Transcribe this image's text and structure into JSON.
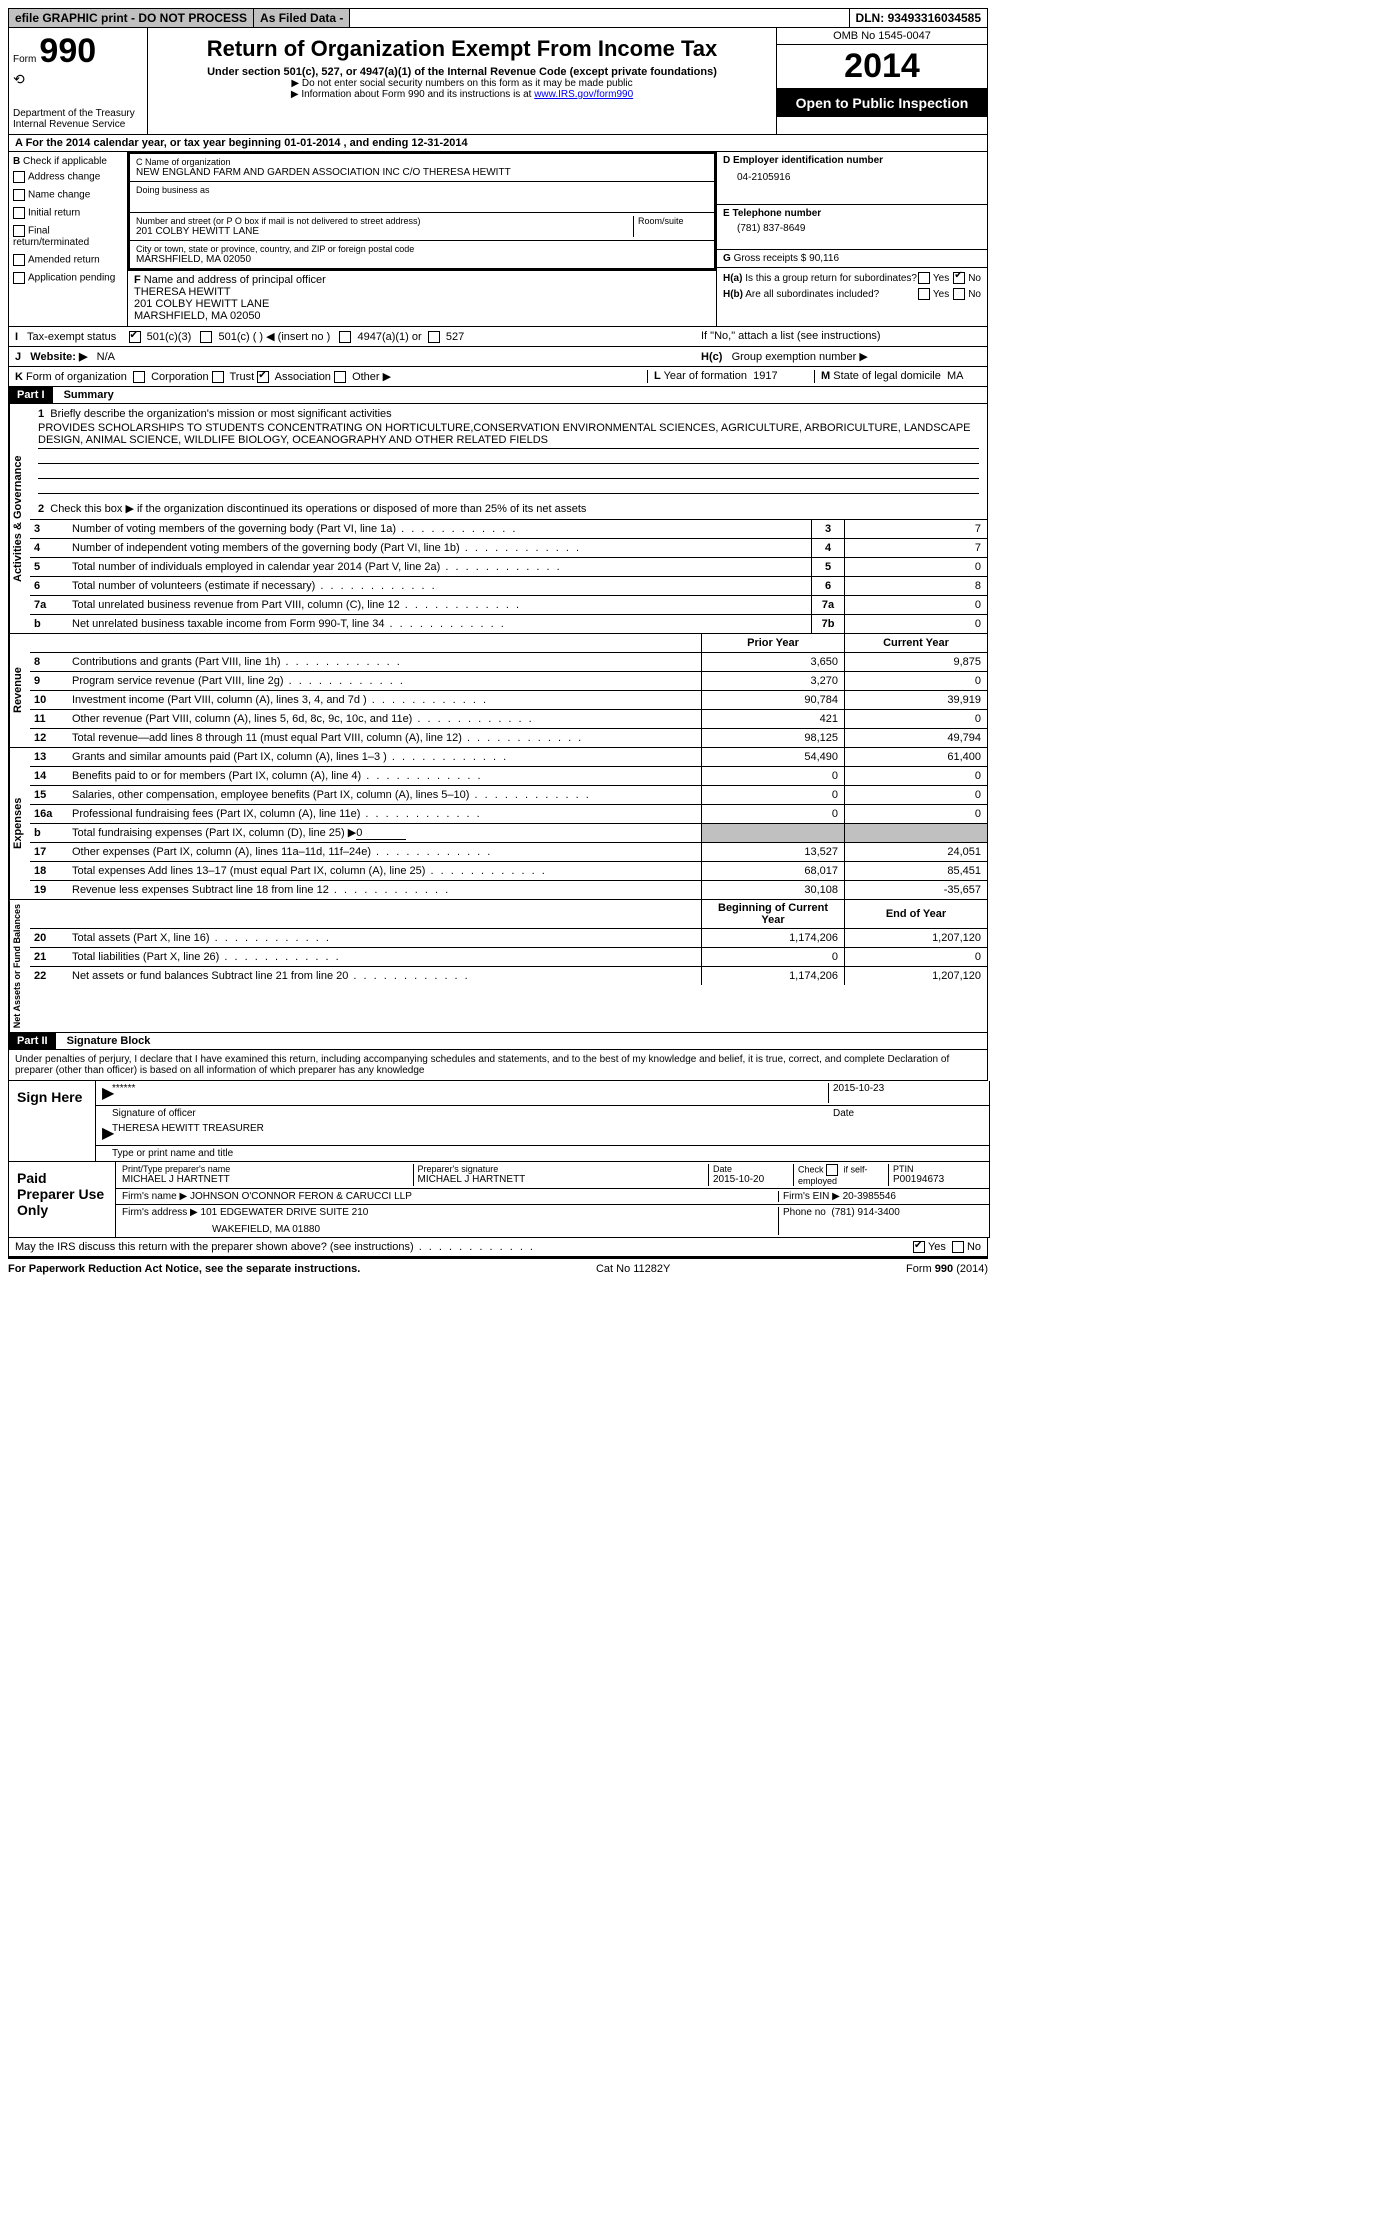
{
  "topbar": {
    "efile": "efile GRAPHIC print - DO NOT PROCESS",
    "asfiled": "As Filed Data -",
    "dln_label": "DLN:",
    "dln": "93493316034585"
  },
  "header": {
    "form_label": "Form",
    "form_num": "990",
    "dept": "Department of the Treasury",
    "irs": "Internal Revenue Service",
    "title": "Return of Organization Exempt From Income Tax",
    "subtitle": "Under section 501(c), 527, or 4947(a)(1) of the Internal Revenue Code (except private foundations)",
    "note1": "▶ Do not enter social security numbers on this form as it may be made public",
    "note2_pre": "▶ Information about Form 990 and its instructions is at ",
    "note2_link": "www.IRS.gov/form990",
    "omb": "OMB No 1545-0047",
    "year": "2014",
    "open": "Open to Public Inspection"
  },
  "sectionA": {
    "line": "A  For the 2014 calendar year, or tax year beginning 01-01-2014    , and ending 12-31-2014",
    "B_label": "B",
    "B_check": "Check if applicable",
    "b_items": [
      "Address change",
      "Name change",
      "Initial return",
      "Final return/terminated",
      "Amended return",
      "Application pending"
    ],
    "C_name_label": "C Name of organization",
    "C_name": "NEW ENGLAND FARM AND GARDEN ASSOCIATION INC C/O THERESA HEWITT",
    "dba_label": "Doing business as",
    "addr_label": "Number and street (or P O  box if mail is not delivered to street address)",
    "room_label": "Room/suite",
    "addr": "201 COLBY HEWITT LANE",
    "city_label": "City or town, state or province, country, and ZIP or foreign postal code",
    "city": "MARSHFIELD, MA  02050",
    "D_label": "D Employer identification number",
    "D_val": "04-2105916",
    "E_label": "E Telephone number",
    "E_val": "(781) 837-8649",
    "G_label": "G",
    "G_text": "Gross receipts $",
    "G_val": "90,116",
    "F_label": "F",
    "F_text": "Name and address of principal officer",
    "F_name": "THERESA HEWITT",
    "F_addr1": "201 COLBY HEWITT LANE",
    "F_addr2": "MARSHFIELD, MA  02050",
    "Ha_label": "H(a)",
    "Ha_text": "Is this a group return for subordinates?",
    "Hb_label": "H(b)",
    "Hb_text": "Are all subordinates included?",
    "H_note": "If \"No,\" attach a list  (see instructions)",
    "Hc_label": "H(c)",
    "Hc_text": "Group exemption number ▶",
    "yes": "Yes",
    "no": "No"
  },
  "I": {
    "label": "I",
    "text": "Tax-exempt status",
    "opts": [
      "501(c)(3)",
      "501(c) (   ) ◀ (insert no )",
      "4947(a)(1) or",
      "527"
    ]
  },
  "J": {
    "label": "J",
    "text": "Website: ▶",
    "val": "N/A"
  },
  "K": {
    "label": "K",
    "text": "Form of organization",
    "opts": [
      "Corporation",
      "Trust",
      "Association",
      "Other ▶"
    ],
    "L_label": "L",
    "L_text": "Year of formation",
    "L_val": "1917",
    "M_label": "M",
    "M_text": "State of legal domicile",
    "M_val": "MA"
  },
  "part1": {
    "header": "Part I",
    "title": "Summary",
    "mission_label": "Briefly describe the organization's mission or most significant activities",
    "mission": "PROVIDES SCHOLARSHIPS TO STUDENTS CONCENTRATING ON HORTICULTURE,CONSERVATION ENVIRONMENTAL SCIENCES, AGRICULTURE, ARBORICULTURE, LANDSCAPE DESIGN, ANIMAL SCIENCE, WILDLIFE BIOLOGY, OCEANOGRAPHY AND OTHER RELATED FIELDS",
    "line2": "Check this box ▶     if the organization discontinued its operations or disposed of more than 25% of its net assets",
    "vert_gov": "Activities & Governance",
    "vert_rev": "Revenue",
    "vert_exp": "Expenses",
    "vert_net": "Net Assets or Fund Balances",
    "lines_gov": [
      {
        "n": "3",
        "d": "Number of voting members of the governing body (Part VI, line 1a)",
        "box": "3",
        "v": "7"
      },
      {
        "n": "4",
        "d": "Number of independent voting members of the governing body (Part VI, line 1b)",
        "box": "4",
        "v": "7"
      },
      {
        "n": "5",
        "d": "Total number of individuals employed in calendar year 2014 (Part V, line 2a)",
        "box": "5",
        "v": "0"
      },
      {
        "n": "6",
        "d": "Total number of volunteers (estimate if necessary)",
        "box": "6",
        "v": "8"
      },
      {
        "n": "7a",
        "d": "Total unrelated business revenue from Part VIII, column (C), line 12",
        "box": "7a",
        "v": "0"
      },
      {
        "n": "b",
        "d": "Net unrelated business taxable income from Form 990-T, line 34",
        "box": "7b",
        "v": "0"
      }
    ],
    "col_prior": "Prior Year",
    "col_current": "Current Year",
    "lines_rev": [
      {
        "n": "8",
        "d": "Contributions and grants (Part VIII, line 1h)",
        "p": "3,650",
        "c": "9,875"
      },
      {
        "n": "9",
        "d": "Program service revenue (Part VIII, line 2g)",
        "p": "3,270",
        "c": "0"
      },
      {
        "n": "10",
        "d": "Investment income (Part VIII, column (A), lines 3, 4, and 7d )",
        "p": "90,784",
        "c": "39,919"
      },
      {
        "n": "11",
        "d": "Other revenue (Part VIII, column (A), lines 5, 6d, 8c, 9c, 10c, and 11e)",
        "p": "421",
        "c": "0"
      },
      {
        "n": "12",
        "d": "Total revenue—add lines 8 through 11 (must equal Part VIII, column (A), line 12)",
        "p": "98,125",
        "c": "49,794"
      }
    ],
    "lines_exp": [
      {
        "n": "13",
        "d": "Grants and similar amounts paid (Part IX, column (A), lines 1–3 )",
        "p": "54,490",
        "c": "61,400"
      },
      {
        "n": "14",
        "d": "Benefits paid to or for members (Part IX, column (A), line 4)",
        "p": "0",
        "c": "0"
      },
      {
        "n": "15",
        "d": "Salaries, other compensation, employee benefits (Part IX, column (A), lines 5–10)",
        "p": "0",
        "c": "0"
      },
      {
        "n": "16a",
        "d": "Professional fundraising fees (Part IX, column (A), line 11e)",
        "p": "0",
        "c": "0"
      },
      {
        "n": "b",
        "d": "Total fundraising expenses (Part IX, column (D), line 25) ▶",
        "p": "",
        "c": "",
        "shaded": true,
        "underline": "0"
      },
      {
        "n": "17",
        "d": "Other expenses (Part IX, column (A), lines 11a–11d, 11f–24e)",
        "p": "13,527",
        "c": "24,051"
      },
      {
        "n": "18",
        "d": "Total expenses  Add lines 13–17 (must equal Part IX, column (A), line 25)",
        "p": "68,017",
        "c": "85,451"
      },
      {
        "n": "19",
        "d": "Revenue less expenses  Subtract line 18 from line 12",
        "p": "30,108",
        "c": "-35,657"
      }
    ],
    "col_begin": "Beginning of Current Year",
    "col_end": "End of Year",
    "lines_net": [
      {
        "n": "20",
        "d": "Total assets (Part X, line 16)",
        "p": "1,174,206",
        "c": "1,207,120"
      },
      {
        "n": "21",
        "d": "Total liabilities (Part X, line 26)",
        "p": "0",
        "c": "0"
      },
      {
        "n": "22",
        "d": "Net assets or fund balances  Subtract line 21 from line 20",
        "p": "1,174,206",
        "c": "1,207,120"
      }
    ]
  },
  "part2": {
    "header": "Part II",
    "title": "Signature Block",
    "perjury": "Under penalties of perjury, I declare that I have examined this return, including accompanying schedules and statements, and to the best of my knowledge and belief, it is true, correct, and complete  Declaration of preparer (other than officer) is based on all information of which preparer has any knowledge",
    "sign_here": "Sign Here",
    "sig_stars": "******",
    "sig_date": "2015-10-23",
    "sig_officer_label": "Signature of officer",
    "sig_date_label": "Date",
    "sig_name": "THERESA HEWITT TREASURER",
    "sig_name_label": "Type or print name and title",
    "paid": "Paid Preparer Use Only",
    "prep_name_label": "Print/Type preparer's name",
    "prep_name": "MICHAEL J HARTNETT",
    "prep_sig_label": "Preparer's signature",
    "prep_sig": "MICHAEL J HARTNETT",
    "prep_date_label": "Date",
    "prep_date": "2015-10-20",
    "self_emp_label": "Check       if self-employed",
    "ptin_label": "PTIN",
    "ptin": "P00194673",
    "firm_name_label": "Firm's name      ▶",
    "firm_name": "JOHNSON O'CONNOR FERON & CARUCCI LLP",
    "firm_ein_label": "Firm's EIN ▶",
    "firm_ein": "20-3985546",
    "firm_addr_label": "Firm's address ▶",
    "firm_addr1": "101 EDGEWATER DRIVE SUITE 210",
    "firm_addr2": "WAKEFIELD, MA  01880",
    "phone_label": "Phone no",
    "phone": "(781) 914-3400",
    "discuss": "May the IRS discuss this return with the preparer shown above? (see instructions)"
  },
  "footer": {
    "left": "For Paperwork Reduction Act Notice, see the separate instructions.",
    "mid": "Cat No 11282Y",
    "right": "Form 990 (2014)"
  }
}
